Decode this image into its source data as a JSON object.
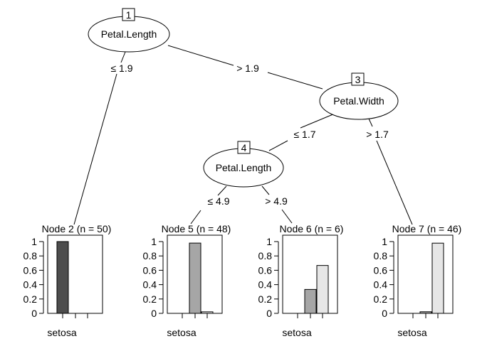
{
  "tree": {
    "nodes": [
      {
        "id": "1",
        "variable": "Petal.Length"
      },
      {
        "id": "3",
        "variable": "Petal.Width"
      },
      {
        "id": "4",
        "variable": "Petal.Length"
      }
    ],
    "edges": [
      {
        "from": "1",
        "to": "2",
        "label": "≤ 1.9"
      },
      {
        "from": "1",
        "to": "3",
        "label": "> 1.9"
      },
      {
        "from": "3",
        "to": "4",
        "label": "≤ 1.7"
      },
      {
        "from": "3",
        "to": "7",
        "label": "> 1.7"
      },
      {
        "from": "4",
        "to": "5",
        "label": "≤ 4.9"
      },
      {
        "from": "4",
        "to": "6",
        "label": "> 4.9"
      }
    ],
    "y_ticks": [
      "1",
      "0.8",
      "0.6",
      "0.4",
      "0.2",
      "0"
    ],
    "x_label": "setosa",
    "class_colors": [
      "#4d4d4d",
      "#a6a6a6",
      "#e6e6e6"
    ],
    "leaves": [
      {
        "id": "2",
        "title": "Node 2 (n = 50)",
        "values": [
          1.0,
          0.0,
          0.0
        ]
      },
      {
        "id": "5",
        "title": "Node 5 (n = 48)",
        "values": [
          0.0,
          0.979,
          0.021
        ]
      },
      {
        "id": "6",
        "title": "Node 6 (n = 6)",
        "values": [
          0.0,
          0.333,
          0.667
        ]
      },
      {
        "id": "7",
        "title": "Node 7 (n = 46)",
        "values": [
          0.0,
          0.022,
          0.978
        ]
      }
    ]
  }
}
